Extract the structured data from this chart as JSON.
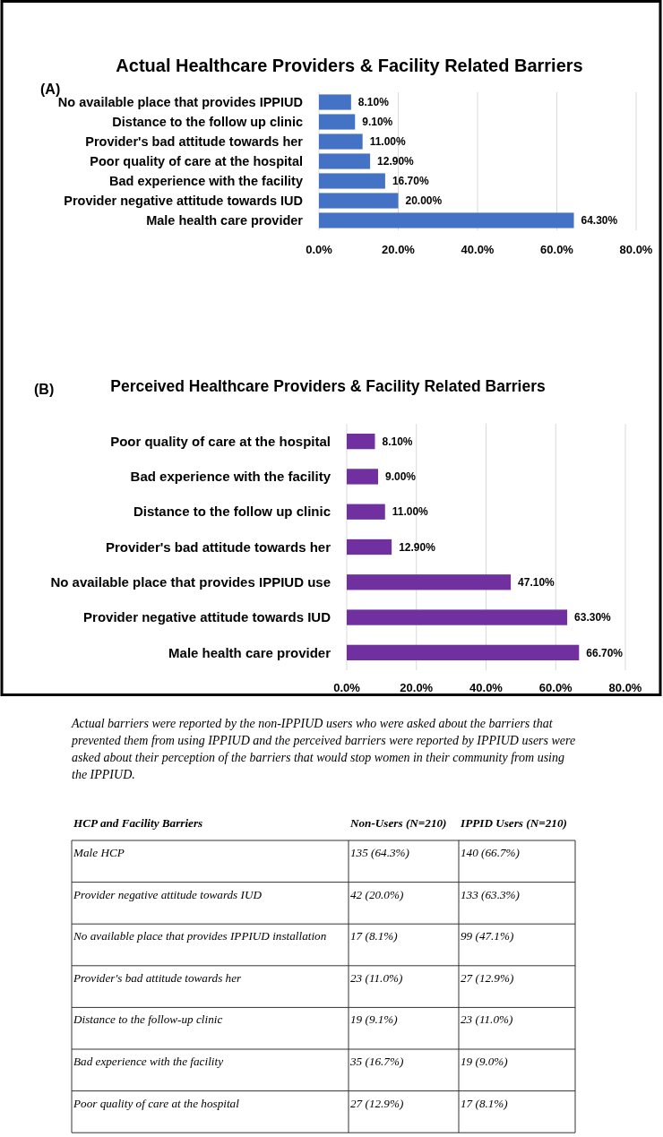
{
  "chart_data": [
    {
      "type": "bar",
      "orientation": "horizontal",
      "title": "Actual Healthcare Providers & Facility Related Barriers",
      "subtitle": "(A)",
      "categories": [
        "No available place that provides IPPIUD",
        "Distance to the follow up clinic",
        "Provider's bad attitude towards her",
        "Poor quality of care at the hospital",
        "Bad experience with the facility",
        "Provider negative attitude towards IUD",
        "Male health care provider"
      ],
      "values": [
        8.1,
        9.1,
        11.0,
        12.9,
        16.7,
        20.0,
        64.3
      ],
      "value_labels": [
        "8.10%",
        "9.10%",
        "11.00%",
        "12.90%",
        "16.70%",
        "20.00%",
        "64.30%"
      ],
      "color": "#4472c4",
      "xlim": [
        0,
        80
      ],
      "xticks": [
        {
          "value": 0,
          "label": "0.0%"
        },
        {
          "value": 20,
          "label": "20.0%"
        },
        {
          "value": 40,
          "label": "40.0%"
        },
        {
          "value": 60,
          "label": "60.0%"
        },
        {
          "value": 80,
          "label": "80.0%"
        }
      ],
      "grid": "x"
    },
    {
      "type": "bar",
      "orientation": "horizontal",
      "title": "Perceived Healthcare Providers & Facility Related Barriers",
      "subtitle": "(B)",
      "categories": [
        "Poor quality of care at the hospital",
        "Bad experience with the facility",
        "Distance to the follow up clinic",
        "Provider's bad attitude towards her",
        "No available place that provides IPPIUD use",
        "Provider negative attitude towards IUD",
        "Male health care provider"
      ],
      "values": [
        8.1,
        9.0,
        11.0,
        12.9,
        47.1,
        63.3,
        66.7
      ],
      "value_labels": [
        "8.10%",
        "9.00%",
        "11.00%",
        "12.90%",
        "47.10%",
        "63.30%",
        "66.70%"
      ],
      "color": "#7030a0",
      "xlim": [
        0,
        80
      ],
      "xticks": [
        {
          "value": 0,
          "label": "0.0%"
        },
        {
          "value": 20,
          "label": "20.0%"
        },
        {
          "value": 40,
          "label": "40.0%"
        },
        {
          "value": 60,
          "label": "60.0%"
        },
        {
          "value": 80,
          "label": "80.0%"
        }
      ],
      "grid": "x",
      "annotations": [
        "Actual barriers were reported by the non-IPPIUD users who were asked about the barriers that prevented them from using IPPIUD and the perceived barriers were reported by IPPIUD users were asked about their perception of the barriers that would stop women in their community from using the IPPIUD."
      ]
    },
    {
      "type": "other",
      "annotations": [
        "HCP and Facility Barriers",
        "Non-Users (N=210)",
        "IPPID Users (N=210)",
        "Male HCP",
        "135 (64.3%)",
        "140 (66.7%)",
        "Provider negative attitude towards IUD",
        "42 (20.0%)",
        "133 (63.3%)",
        "No available place that provides IPPIUD installation",
        "17 (8.1%)",
        "99 (47.1%)",
        "Provider's bad attitude towards her",
        "23 (11.0%)",
        "27 (12.9%)",
        "Distance to the follow-up clinic",
        "19 (9.1%)",
        "23 (11.0%)",
        "Bad experience with the facility",
        "35 (16.7%)",
        "19 (9.0%)",
        "Poor quality of care at the hospital",
        "27 (12.9%)",
        "17 (8.1%)"
      ]
    }
  ]
}
